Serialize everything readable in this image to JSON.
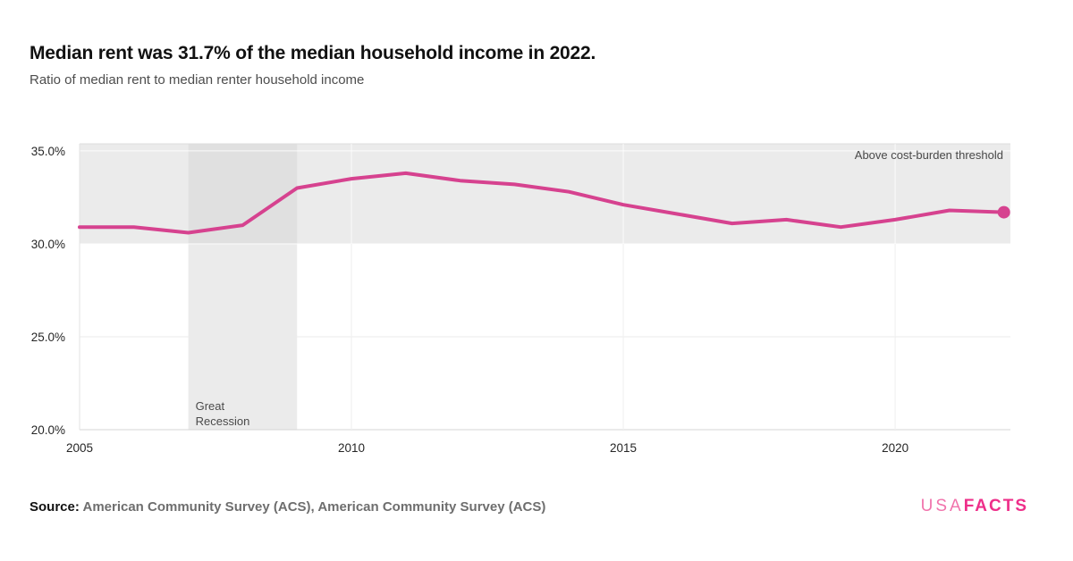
{
  "header": {
    "title": "Median rent was 31.7% of the median household income in 2022.",
    "subtitle": "Ratio of median rent to median renter household income"
  },
  "chart_data": {
    "type": "line",
    "title": "Median rent was 31.7% of the median household income in 2022.",
    "subtitle": "Ratio of median rent to median renter household income",
    "x": [
      2005,
      2006,
      2007,
      2008,
      2009,
      2010,
      2011,
      2012,
      2013,
      2014,
      2015,
      2016,
      2017,
      2018,
      2019,
      2020,
      2021,
      2022
    ],
    "values": [
      30.9,
      30.9,
      30.6,
      31.0,
      33.0,
      33.5,
      33.8,
      33.4,
      33.2,
      32.8,
      32.1,
      31.6,
      31.1,
      31.3,
      30.9,
      31.3,
      31.8,
      31.7
    ],
    "unit": "%",
    "xlim": [
      2005,
      2022.12
    ],
    "ylim": [
      20,
      35.38
    ],
    "y_ticks": [
      {
        "value": 35,
        "label": "35.0%"
      },
      {
        "value": 30,
        "label": "30.0%"
      },
      {
        "value": 25,
        "label": "25.0%"
      },
      {
        "value": 20,
        "label": "20.0%"
      }
    ],
    "x_ticks": [
      {
        "value": 2005,
        "label": "2005"
      },
      {
        "value": 2010,
        "label": "2010"
      },
      {
        "value": 2015,
        "label": "2015"
      },
      {
        "value": 2020,
        "label": "2020"
      }
    ],
    "grid": true,
    "legend": "none",
    "line_color": "#d6428f",
    "end_marker": {
      "x": 2022,
      "y": 31.7,
      "color": "#d6428f"
    },
    "plot_bands": {
      "threshold_band": {
        "axis": "y",
        "from": 30,
        "to": 35.38,
        "color": "#ebebeb",
        "label": "Above cost-burden threshold",
        "label_color": "#4a4a4a"
      },
      "recession_band": {
        "axis": "x",
        "from": 2007,
        "to": 2009,
        "color_over_white": "#ebebeb",
        "color_over_band": "#e0e0e0",
        "label_line1": "Great",
        "label_line2": "Recession",
        "label_color": "#4a4a4a"
      }
    }
  },
  "footer": {
    "source_label": "Source:",
    "source_text": "American Community Survey (ACS), American Community Survey (ACS)",
    "logo_usa": "USA",
    "logo_facts": "FACTS"
  }
}
